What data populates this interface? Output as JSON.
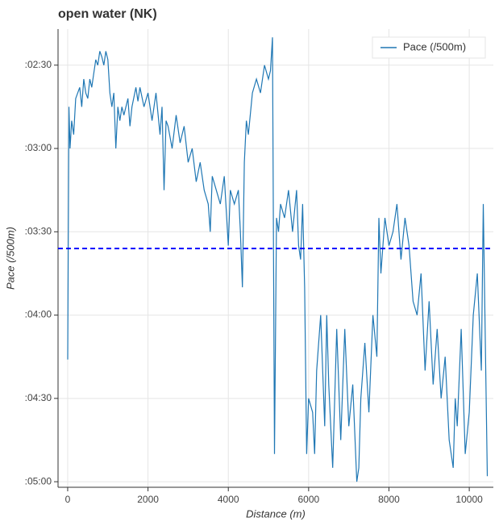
{
  "chart_data": {
    "type": "line",
    "title": "open water (NK)",
    "x_label": "Distance (m)",
    "y_label": "Pace (/500m)",
    "xlim": [
      -240,
      10600
    ],
    "xticks": [
      0,
      2000,
      4000,
      6000,
      8000,
      10000
    ],
    "ylim": [
      302,
      137
    ],
    "yticks": [
      {
        "value": 150,
        "label": ":02:30"
      },
      {
        "value": 180,
        "label": ":03:00"
      },
      {
        "value": 210,
        "label": ":03:30"
      },
      {
        "value": 240,
        "label": ":04:00"
      },
      {
        "value": 270,
        "label": ":04:30"
      },
      {
        "value": 300,
        "label": ":05:00"
      }
    ],
    "grid": true,
    "legend": "top-right",
    "reference_line": {
      "value": 216,
      "color": "#0000ff"
    },
    "series": [
      {
        "name": "Pace (/500m)",
        "color": "#1f77b4",
        "x": [
          0,
          30,
          60,
          100,
          150,
          200,
          250,
          300,
          350,
          400,
          450,
          500,
          550,
          600,
          650,
          700,
          750,
          800,
          850,
          900,
          950,
          1000,
          1050,
          1100,
          1150,
          1200,
          1250,
          1300,
          1350,
          1400,
          1500,
          1550,
          1600,
          1700,
          1750,
          1800,
          1900,
          2000,
          2100,
          2200,
          2300,
          2350,
          2400,
          2450,
          2500,
          2600,
          2700,
          2800,
          2900,
          3000,
          3100,
          3200,
          3300,
          3400,
          3500,
          3550,
          3600,
          3700,
          3800,
          3900,
          4000,
          4050,
          4150,
          4250,
          4300,
          4350,
          4400,
          4450,
          4500,
          4600,
          4700,
          4800,
          4900,
          5000,
          5050,
          5100,
          5150,
          5200,
          5250,
          5300,
          5400,
          5500,
          5600,
          5700,
          5750,
          5800,
          5850,
          5900,
          5950,
          6000,
          6100,
          6150,
          6200,
          6300,
          6400,
          6450,
          6500,
          6600,
          6700,
          6800,
          6900,
          7000,
          7100,
          7200,
          7250,
          7300,
          7400,
          7500,
          7600,
          7700,
          7750,
          7800,
          7900,
          8000,
          8100,
          8200,
          8300,
          8400,
          8500,
          8600,
          8700,
          8800,
          8900,
          9000,
          9100,
          9200,
          9300,
          9400,
          9500,
          9600,
          9650,
          9700,
          9800,
          9900,
          10000,
          10100,
          10200,
          10300,
          10350,
          10450
        ],
        "values": [
          256,
          165,
          180,
          170,
          175,
          162,
          160,
          158,
          165,
          155,
          160,
          162,
          155,
          158,
          153,
          148,
          150,
          145,
          147,
          150,
          145,
          148,
          160,
          165,
          160,
          180,
          165,
          170,
          165,
          168,
          162,
          172,
          165,
          158,
          163,
          158,
          165,
          160,
          170,
          160,
          175,
          165,
          195,
          170,
          172,
          180,
          168,
          178,
          172,
          185,
          180,
          192,
          185,
          195,
          200,
          210,
          190,
          195,
          200,
          190,
          215,
          195,
          200,
          195,
          210,
          230,
          185,
          170,
          175,
          160,
          155,
          160,
          150,
          155,
          152,
          140,
          290,
          205,
          210,
          200,
          205,
          195,
          210,
          195,
          215,
          220,
          200,
          230,
          290,
          270,
          275,
          290,
          260,
          240,
          280,
          240,
          265,
          295,
          245,
          285,
          245,
          280,
          265,
          300,
          295,
          270,
          250,
          275,
          240,
          255,
          205,
          225,
          205,
          215,
          210,
          200,
          220,
          205,
          215,
          235,
          240,
          225,
          260,
          235,
          265,
          245,
          270,
          255,
          285,
          295,
          270,
          280,
          245,
          290,
          275,
          240,
          225,
          260,
          200,
          298
        ]
      }
    ]
  }
}
